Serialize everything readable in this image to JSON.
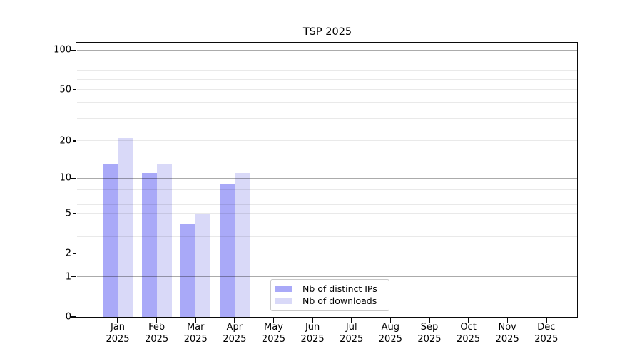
{
  "title": "TSP 2025",
  "chart_data": {
    "type": "bar",
    "title": "TSP 2025",
    "categories": [
      "Jan",
      "Feb",
      "Mar",
      "Apr",
      "May",
      "Jun",
      "Jul",
      "Aug",
      "Sep",
      "Oct",
      "Nov",
      "Dec"
    ],
    "x_tick_second_line": "2025",
    "series": [
      {
        "name": "Nb of distinct IPs",
        "color": "#a9a9f8",
        "values": [
          13,
          11,
          4,
          9,
          0,
          0,
          0,
          0,
          0,
          0,
          0,
          0
        ]
      },
      {
        "name": "Nb of downloads",
        "color": "#d9d9f8",
        "values": [
          21,
          13,
          5,
          11,
          0,
          0,
          0,
          0,
          0,
          0,
          0,
          0
        ]
      }
    ],
    "y_ticks": [
      0,
      1,
      2,
      5,
      10,
      20,
      50,
      100
    ],
    "y_major_gridlines": [
      1,
      10,
      100
    ],
    "y_scale": "log10(1+y)",
    "ylim": [
      0,
      112
    ],
    "xlabel": "",
    "ylabel": "",
    "grid": "horizontal",
    "legend_position": "inside lower-center-left",
    "legend_entries": [
      "Nb of distinct IPs",
      "Nb of downloads"
    ]
  }
}
